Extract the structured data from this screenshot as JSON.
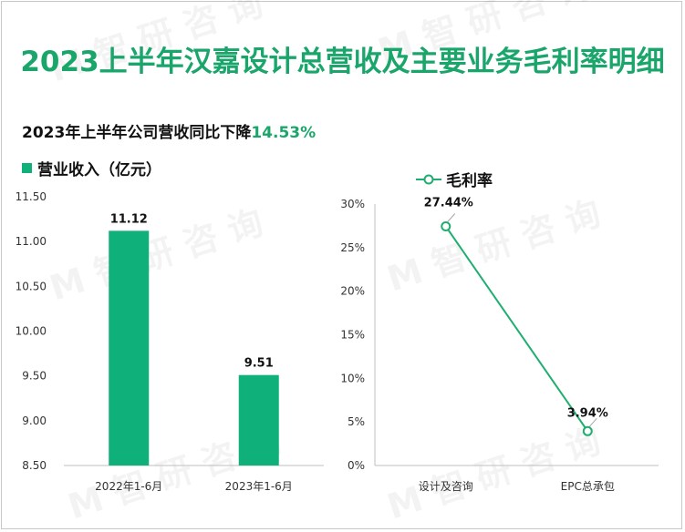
{
  "title": "2023上半年汉嘉设计总营收及主要业务毛利率明细",
  "subtitle": {
    "prefix": "2023年上半年公司营收同比下降",
    "highlight": "14.53%"
  },
  "colors": {
    "accent": "#1aa66a",
    "bar": "#10b07b",
    "line": "#1fae6f"
  },
  "chart_data": [
    {
      "type": "bar",
      "legend": "营业收入（亿元）",
      "categories": [
        "2022年1-6月",
        "2023年1-6月"
      ],
      "values": [
        11.12,
        9.51
      ],
      "value_labels": [
        "11.12",
        "9.51"
      ],
      "ylim": [
        8.5,
        11.5
      ],
      "yticks": [
        "11.50",
        "11.00",
        "10.50",
        "10.00",
        "9.50",
        "9.00",
        "8.50"
      ],
      "grid": false,
      "legend_position": "top-left"
    },
    {
      "type": "line",
      "series": [
        {
          "name": "毛利率",
          "values": [
            27.44,
            3.94
          ],
          "value_labels": [
            "27.44%",
            "3.94%"
          ]
        }
      ],
      "categories": [
        "设计及咨询",
        "EPC总承包"
      ],
      "ylim": [
        0,
        30
      ],
      "yticks": [
        "30%",
        "25%",
        "20%",
        "15%",
        "10%",
        "5%",
        "0%"
      ],
      "grid": false,
      "legend_position": "top"
    }
  ]
}
